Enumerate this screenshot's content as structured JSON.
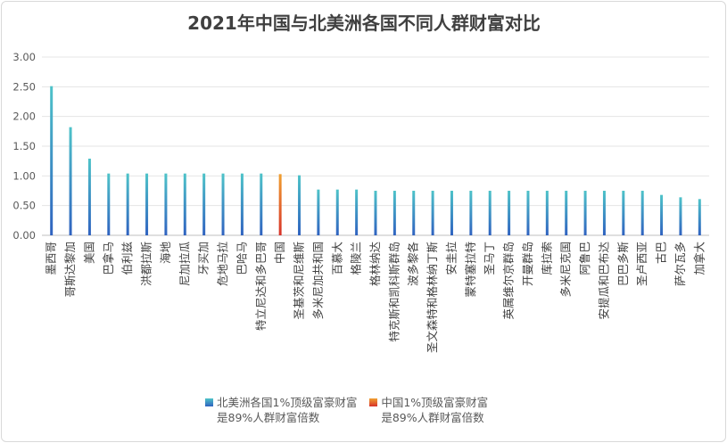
{
  "chart_data": {
    "type": "bar",
    "title": "2021年中国与北美洲各国不同人群财富对比",
    "xlabel": "",
    "ylabel": "",
    "ylim": [
      0,
      3
    ],
    "yticks": [
      "0.00",
      "0.50",
      "1.00",
      "1.50",
      "2.00",
      "2.50",
      "3.00"
    ],
    "grid": true,
    "legend_position": "bottom",
    "categories": [
      "墨西哥",
      "哥斯达黎加",
      "美国",
      "巴拿马",
      "伯利兹",
      "洪都拉斯",
      "海地",
      "尼加拉瓜",
      "牙买加",
      "危地马拉",
      "巴哈马",
      "特立尼达和多巴哥",
      "中国",
      "圣基茨和尼维斯",
      "多米尼加共和国",
      "百慕大",
      "格陵兰",
      "格林纳达",
      "特克斯和凯科斯群岛",
      "波多黎各",
      "圣文森特和格林纳丁斯",
      "安圭拉",
      "蒙特塞拉特",
      "圣马丁",
      "英属维尔京群岛",
      "开曼群岛",
      "库拉索",
      "多米尼克国",
      "阿鲁巴",
      "安提瓜和巴布达",
      "巴巴多斯",
      "圣卢西亚",
      "古巴",
      "萨尔瓦多",
      "加拿大"
    ],
    "series": [
      {
        "name": "北美洲各国1%顶级富豪财富\n是89%人群财富倍数",
        "color": "#3aa2c4",
        "values": [
          2.51,
          1.82,
          1.29,
          1.04,
          1.04,
          1.04,
          1.04,
          1.04,
          1.04,
          1.04,
          1.04,
          1.04,
          null,
          1.01,
          0.77,
          0.77,
          0.77,
          0.75,
          0.75,
          0.75,
          0.75,
          0.75,
          0.75,
          0.75,
          0.75,
          0.75,
          0.75,
          0.75,
          0.75,
          0.75,
          0.75,
          0.75,
          0.68,
          0.64,
          0.61
        ]
      },
      {
        "name": "中国1%顶级富豪财富\n是89%人群财富倍数",
        "color": "#e8632b",
        "values": [
          null,
          null,
          null,
          null,
          null,
          null,
          null,
          null,
          null,
          null,
          null,
          null,
          1.03,
          null,
          null,
          null,
          null,
          null,
          null,
          null,
          null,
          null,
          null,
          null,
          null,
          null,
          null,
          null,
          null,
          null,
          null,
          null,
          null,
          null,
          null
        ]
      }
    ]
  }
}
